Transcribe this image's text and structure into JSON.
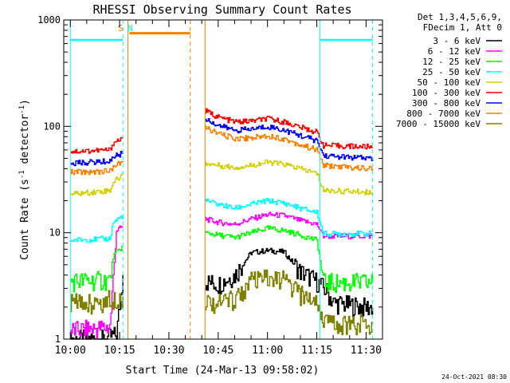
{
  "colors": {
    "k1": "#000000",
    "k2": "#ff00ff",
    "k3": "#00ff00",
    "k4": "#00ffff",
    "k5": "#d4d000",
    "k6": "#ff0000",
    "k7": "#0000ff",
    "k8": "#ff8000",
    "k9": "#808000"
  },
  "chart_data": {
    "type": "line",
    "title": "RHESSI Observing Summary Count Rates",
    "ylabel_main": "Count Rate (s",
    "ylabel_exp1": "-1",
    "ylabel_mid": " detector",
    "ylabel_exp2": "-1",
    "ylabel_end": ")",
    "xlabel": "Start Time (24-Mar-13 09:58:02)",
    "y_scale": "log",
    "ylim": [
      1,
      1000
    ],
    "xlim_minutes": [
      598,
      695
    ],
    "y_ticks": [
      {
        "v": 1,
        "label": "1"
      },
      {
        "v": 10,
        "label": "10"
      },
      {
        "v": 100,
        "label": "100"
      },
      {
        "v": 1000,
        "label": "1000"
      }
    ],
    "x_ticks": [
      {
        "v": 600,
        "label": "10:00"
      },
      {
        "v": 615,
        "label": "10:15"
      },
      {
        "v": 630,
        "label": "10:30"
      },
      {
        "v": 645,
        "label": "10:45"
      },
      {
        "v": 660,
        "label": "11:00"
      },
      {
        "v": 675,
        "label": "11:15"
      },
      {
        "v": 690,
        "label": "11:30"
      }
    ],
    "legend_header": [
      "Det 1,3,4,5,6,9,",
      "FDecim 1, Att 0"
    ],
    "legend_placement": "right",
    "series": [
      {
        "name": "3 - 6 keV",
        "color": "k1",
        "segments": [
          {
            "x": [
              600,
              610,
              614,
              616
            ],
            "y": [
              1.0,
              1.0,
              1.1,
              4.0
            ]
          },
          {
            "x": [
              641,
              645,
              650,
              655,
              660,
              665,
              670,
              675,
              678,
              680,
              690,
              692
            ],
            "y": [
              3.5,
              3.3,
              4.0,
              6.5,
              6.8,
              6.6,
              4.3,
              3.5,
              2.8,
              2.2,
              2.0,
              2.0
            ]
          }
        ]
      },
      {
        "name": "6 - 12 keV",
        "color": "k2",
        "segments": [
          {
            "x": [
              600,
              612,
              614,
              616
            ],
            "y": [
              1.2,
              1.3,
              10.5,
              11.5
            ]
          },
          {
            "x": [
              641,
              645,
              650,
              655,
              660,
              665,
              670,
              675,
              677,
              685,
              692
            ],
            "y": [
              13.5,
              12.5,
              12.0,
              13.5,
              14.8,
              14.5,
              13.0,
              12.0,
              9.3,
              9.3,
              9.3
            ]
          }
        ]
      },
      {
        "name": "12 - 25 keV",
        "color": "k3",
        "segments": [
          {
            "x": [
              600,
              612,
              613,
              616
            ],
            "y": [
              3.5,
              3.6,
              6.0,
              7.5
            ]
          },
          {
            "x": [
              641,
              645,
              650,
              655,
              660,
              665,
              670,
              675,
              677,
              685,
              692
            ],
            "y": [
              10.0,
              9.5,
              9.0,
              10.0,
              11.0,
              10.5,
              9.5,
              8.5,
              3.4,
              3.4,
              3.4
            ]
          }
        ]
      },
      {
        "name": "25 - 50 keV",
        "color": "k4",
        "segments": [
          {
            "x": [
              600,
              612,
              613,
              616
            ],
            "y": [
              8.5,
              8.8,
              12.5,
              14.5
            ]
          },
          {
            "x": [
              641,
              645,
              650,
              655,
              660,
              665,
              670,
              675,
              677,
              685,
              692
            ],
            "y": [
              20.0,
              18.5,
              17.0,
              18.5,
              20.0,
              19.0,
              17.0,
              15.5,
              9.8,
              9.8,
              9.8
            ]
          }
        ]
      },
      {
        "name": "50 - 100 keV",
        "color": "k5",
        "segments": [
          {
            "x": [
              600,
              612,
              613,
              616
            ],
            "y": [
              23.0,
              25.0,
              30.0,
              35.0
            ]
          },
          {
            "x": [
              641,
              645,
              650,
              655,
              660,
              665,
              670,
              675,
              677,
              685,
              692
            ],
            "y": [
              45.0,
              43.0,
              41.0,
              43.0,
              46.0,
              44.0,
              40.0,
              36.0,
              25.0,
              24.5,
              24.0
            ]
          }
        ]
      },
      {
        "name": "100 - 300 keV",
        "color": "k6",
        "segments": [
          {
            "x": [
              600,
              612,
              613,
              616
            ],
            "y": [
              58.0,
              60.0,
              70.0,
              78.0
            ]
          },
          {
            "x": [
              641,
              645,
              650,
              655,
              660,
              665,
              670,
              675,
              677,
              685,
              692
            ],
            "y": [
              140.0,
              122.0,
              110.0,
              112.0,
              118.0,
              110.0,
              98.0,
              88.0,
              66.0,
              65.0,
              64.0
            ]
          }
        ]
      },
      {
        "name": "300 - 800 keV",
        "color": "k7",
        "segments": [
          {
            "x": [
              600,
              612,
              613,
              616
            ],
            "y": [
              45.0,
              47.0,
              52.0,
              56.0
            ]
          },
          {
            "x": [
              641,
              645,
              650,
              655,
              660,
              665,
              670,
              675,
              677,
              685,
              692
            ],
            "y": [
              118.0,
              102.0,
              92.0,
              94.0,
              100.0,
              92.0,
              82.0,
              73.0,
              53.0,
              51.0,
              50.0
            ]
          }
        ]
      },
      {
        "name": "800 - 7000 keV",
        "color": "k8",
        "segments": [
          {
            "x": [
              600,
              612,
              613,
              616
            ],
            "y": [
              37.0,
              38.0,
              42.0,
              46.0
            ]
          },
          {
            "x": [
              641,
              645,
              650,
              655,
              660,
              665,
              670,
              675,
              677,
              685,
              692
            ],
            "y": [
              98.0,
              85.0,
              77.0,
              78.0,
              82.0,
              76.0,
              67.0,
              60.0,
              43.0,
              41.0,
              40.0
            ]
          }
        ]
      },
      {
        "name": "7000 - 15000 keV",
        "color": "k9",
        "segments": [
          {
            "x": [
              600,
              610,
              612,
              616
            ],
            "y": [
              2.2,
              2.2,
              2.4,
              2.5
            ]
          },
          {
            "x": [
              641,
              645,
              650,
              655,
              660,
              665,
              670,
              675,
              677,
              680,
              692
            ],
            "y": [
              2.3,
              2.2,
              2.4,
              3.5,
              3.7,
              3.6,
              2.6,
              2.3,
              1.5,
              1.4,
              1.4
            ]
          }
        ]
      }
    ],
    "markers": {
      "orange_vlines": [
        617.5,
        641.0
      ],
      "orange_dashed": [
        636.5
      ],
      "cyan_vlines": [
        600.0,
        676.0
      ],
      "cyan_dashed": [
        616.0,
        692.0
      ],
      "cyan_bar_segments": [
        [
          600,
          616
        ],
        [
          676,
          692
        ]
      ],
      "orange_bar_segment": [
        618,
        636.5
      ],
      "top_level": 650,
      "letters": [
        {
          "x": 615.3,
          "text": "S",
          "color": "k8"
        },
        {
          "x": 618.2,
          "text": "N",
          "color": "k4"
        }
      ]
    }
  },
  "timestamp": "24-Oct-2021 08:30"
}
